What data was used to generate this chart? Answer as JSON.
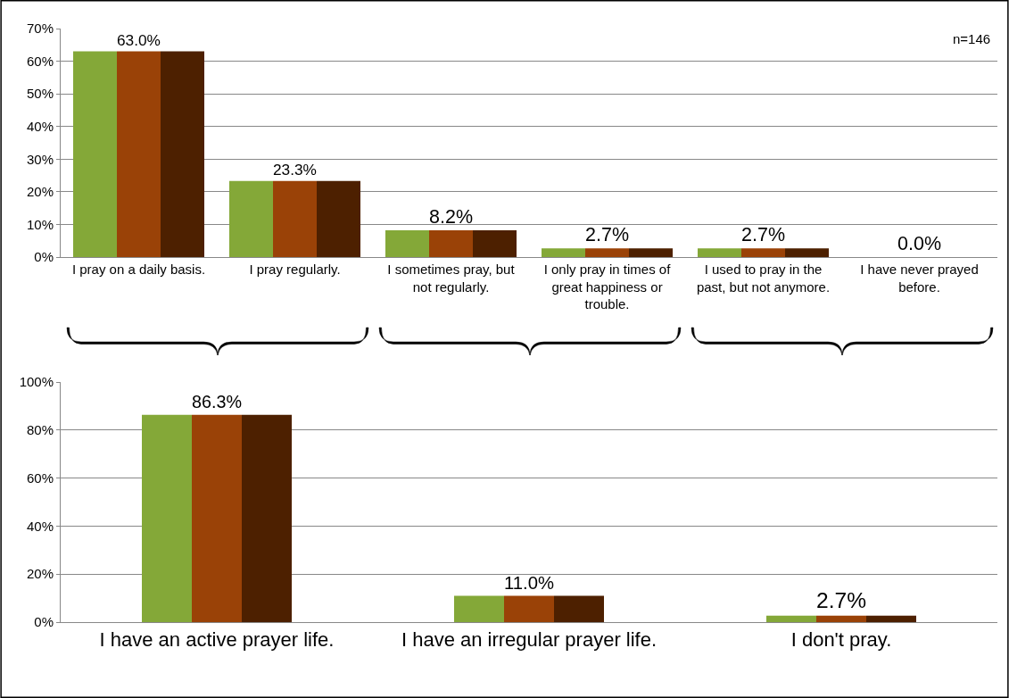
{
  "chart_data": [
    {
      "type": "bar",
      "categories": [
        "I pray on a daily basis.",
        "I pray regularly.",
        "I sometimes pray, but not regularly.",
        "I only pray in times of great happiness or trouble.",
        "I used to pray in the past, but not anymore.",
        "I have never prayed before."
      ],
      "series": [
        {
          "color": "#84a838",
          "values": [
            63.0,
            23.3,
            8.2,
            2.7,
            2.7,
            0.0
          ]
        },
        {
          "color": "#9a4207",
          "values": [
            63.0,
            23.3,
            8.2,
            2.7,
            2.7,
            0.0
          ],
          "value_labels": [
            "63.0%",
            "23.3%",
            "8.2%",
            "2.7%",
            "2.7%",
            "0.0%"
          ]
        },
        {
          "color": "#4d2000",
          "values": [
            63.0,
            23.3,
            8.2,
            2.7,
            2.7,
            0.0
          ]
        }
      ],
      "ylim": [
        0,
        70
      ],
      "yticks": [
        {
          "value": 0,
          "label": "0%"
        },
        {
          "value": 10,
          "label": "10%"
        },
        {
          "value": 20,
          "label": "20%"
        },
        {
          "value": 30,
          "label": "30%"
        },
        {
          "value": 40,
          "label": "40%"
        },
        {
          "value": 50,
          "label": "50%"
        },
        {
          "value": 60,
          "label": "60%"
        },
        {
          "value": 70,
          "label": "70%"
        }
      ],
      "grid": "y",
      "annotations": [
        "n=146"
      ]
    },
    {
      "type": "bar",
      "categories": [
        "I have an active prayer life.",
        "I have an irregular prayer life.",
        "I don't pray."
      ],
      "series": [
        {
          "color": "#84a838",
          "values": [
            86.3,
            11.0,
            2.7
          ]
        },
        {
          "color": "#9a4207",
          "values": [
            86.3,
            11.0,
            2.7
          ],
          "value_labels": [
            "86.3%",
            "11.0%",
            "2.7%"
          ]
        },
        {
          "color": "#4d2000",
          "values": [
            86.3,
            11.0,
            2.7
          ]
        }
      ],
      "ylim": [
        0,
        100
      ],
      "yticks": [
        {
          "value": 0,
          "label": "0%"
        },
        {
          "value": 20,
          "label": "20%"
        },
        {
          "value": 40,
          "label": "40%"
        },
        {
          "value": 60,
          "label": "60%"
        },
        {
          "value": 80,
          "label": "80%"
        },
        {
          "value": 100,
          "label": "100%"
        }
      ],
      "grid": "y"
    }
  ]
}
